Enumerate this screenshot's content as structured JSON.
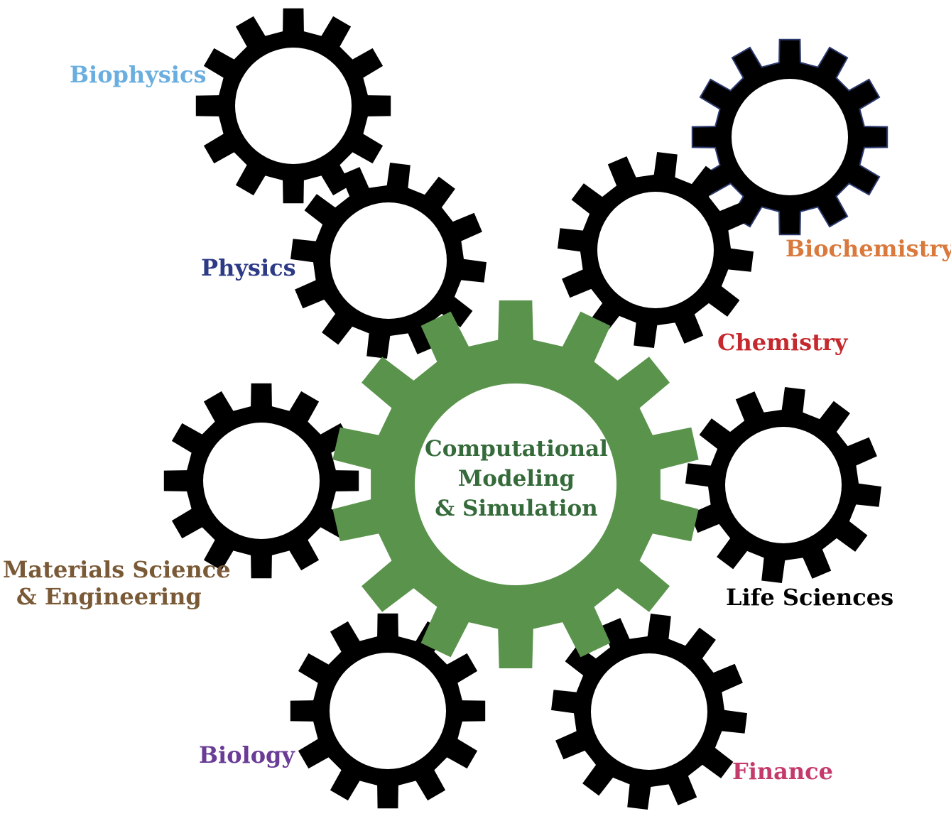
{
  "diagram": {
    "center": {
      "lines": [
        "Computational",
        "Modeling",
        "& Simulation"
      ],
      "color": "#356b3a",
      "gear_color": "#5a944c"
    },
    "satellite_gear_color": "#000000",
    "satellites": [
      {
        "id": "biophysics",
        "lines": [
          "Biophysics"
        ],
        "color": "#6aaee0"
      },
      {
        "id": "physics",
        "lines": [
          "Physics"
        ],
        "color": "#2d3a86"
      },
      {
        "id": "biochemistry",
        "lines": [
          "Biochemistry"
        ],
        "color": "#d9793c"
      },
      {
        "id": "chemistry",
        "lines": [
          "Chemistry"
        ],
        "color": "#c5282d"
      },
      {
        "id": "materials",
        "lines": [
          "Materials Science",
          "& Engineering"
        ],
        "color": "#7a5a36"
      },
      {
        "id": "life-sciences",
        "lines": [
          "Life Sciences"
        ],
        "color": "#000000"
      },
      {
        "id": "biology",
        "lines": [
          "Biology"
        ],
        "color": "#6a3c96"
      },
      {
        "id": "finance",
        "lines": [
          "Finance"
        ],
        "color": "#c43a6a"
      }
    ]
  }
}
